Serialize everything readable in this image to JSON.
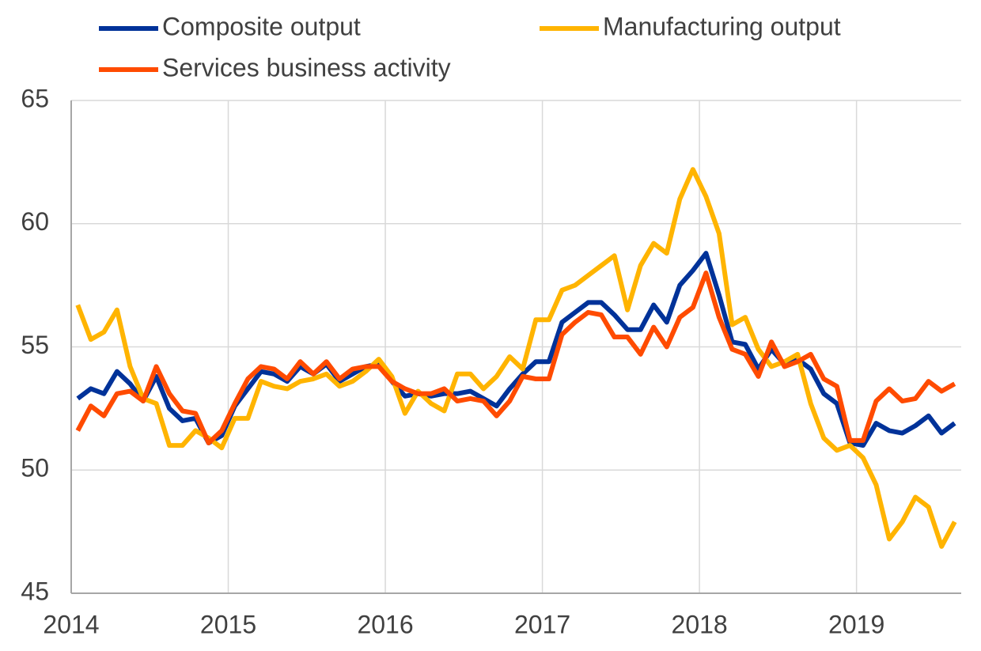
{
  "chart_data": {
    "type": "line",
    "x": [
      0.5,
      1.5,
      2.5,
      3.5,
      4.5,
      5.5,
      6.5,
      7.5,
      8.5,
      9.5,
      10.5,
      11.5,
      12.5,
      13.5,
      14.5,
      15.5,
      16.5,
      17.5,
      18.5,
      19.5,
      20.5,
      21.5,
      22.5,
      23.5,
      24.5,
      25.5,
      26.5,
      27.5,
      28.5,
      29.5,
      30.5,
      31.5,
      32.5,
      33.5,
      34.5,
      35.5,
      36.5,
      37.5,
      38.5,
      39.5,
      40.5,
      41.5,
      42.5,
      43.5,
      44.5,
      45.5,
      46.5,
      47.5,
      48.5,
      49.5,
      50.5,
      51.5,
      52.5,
      53.5,
      54.5,
      55.5,
      56.5,
      57.5,
      58.5,
      59.5,
      60.5,
      61.5,
      62.5,
      63.5,
      64.5,
      65.5,
      66.5,
      67.5
    ],
    "series": [
      {
        "name": "Composite output",
        "color": "#003299",
        "values": [
          52.9,
          53.3,
          53.1,
          54.0,
          53.5,
          52.8,
          53.8,
          52.5,
          52.0,
          52.1,
          51.1,
          51.4,
          52.6,
          53.3,
          54.0,
          53.9,
          53.6,
          54.2,
          53.9,
          54.3,
          53.6,
          53.9,
          54.2,
          54.3,
          53.6,
          53.0,
          53.1,
          53.0,
          53.1,
          53.1,
          53.2,
          52.9,
          52.6,
          53.3,
          53.9,
          54.4,
          54.4,
          56.0,
          56.4,
          56.8,
          56.8,
          56.3,
          55.7,
          55.7,
          56.7,
          56.0,
          57.5,
          58.1,
          58.8,
          57.1,
          55.2,
          55.1,
          54.1,
          54.9,
          54.3,
          54.5,
          54.1,
          53.1,
          52.7,
          51.1,
          51.0,
          51.9,
          51.6,
          51.5,
          51.8,
          52.2,
          51.5,
          51.9
        ]
      },
      {
        "name": "Manufacturing output",
        "color": "#ffb400",
        "values": [
          56.7,
          55.3,
          55.6,
          56.5,
          54.2,
          52.9,
          52.7,
          51.0,
          51.0,
          51.6,
          51.3,
          50.9,
          52.1,
          52.1,
          53.6,
          53.4,
          53.3,
          53.6,
          53.7,
          53.9,
          53.4,
          53.6,
          54.0,
          54.5,
          53.8,
          52.3,
          53.2,
          52.7,
          52.4,
          53.9,
          53.9,
          53.3,
          53.8,
          54.6,
          54.1,
          56.1,
          56.1,
          57.3,
          57.5,
          57.9,
          58.3,
          58.7,
          56.5,
          58.3,
          59.2,
          58.8,
          61.0,
          62.2,
          61.1,
          59.6,
          55.9,
          56.2,
          54.9,
          54.2,
          54.4,
          54.7,
          52.7,
          51.3,
          50.8,
          51.0,
          50.5,
          49.4,
          47.2,
          47.9,
          48.9,
          48.5,
          46.9,
          47.9
        ]
      },
      {
        "name": "Services business activity",
        "color": "#ff4b00",
        "values": [
          51.6,
          52.6,
          52.2,
          53.1,
          53.2,
          52.8,
          54.2,
          53.1,
          52.4,
          52.3,
          51.1,
          51.6,
          52.7,
          53.7,
          54.2,
          54.1,
          53.7,
          54.4,
          53.9,
          54.4,
          53.7,
          54.1,
          54.2,
          54.2,
          53.6,
          53.3,
          53.1,
          53.1,
          53.3,
          52.8,
          52.9,
          52.8,
          52.2,
          52.8,
          53.8,
          53.7,
          53.7,
          55.5,
          56.0,
          56.4,
          56.3,
          55.4,
          55.4,
          54.7,
          55.8,
          55.0,
          56.2,
          56.6,
          58.0,
          56.2,
          54.9,
          54.7,
          53.8,
          55.2,
          54.2,
          54.4,
          54.7,
          53.7,
          53.4,
          51.2,
          51.2,
          52.8,
          53.3,
          52.8,
          52.9,
          53.6,
          53.2,
          53.5
        ]
      }
    ],
    "xlim": [
      0,
      68
    ],
    "xticks": [
      {
        "value": 0,
        "label": "2014"
      },
      {
        "value": 12,
        "label": "2015"
      },
      {
        "value": 24,
        "label": "2016"
      },
      {
        "value": 36,
        "label": "2017"
      },
      {
        "value": 48,
        "label": "2018"
      },
      {
        "value": 60,
        "label": "2019"
      }
    ],
    "ylim": [
      45,
      65
    ],
    "yticks": [
      45,
      50,
      55,
      60,
      65
    ],
    "grid": true,
    "legend": "top"
  }
}
